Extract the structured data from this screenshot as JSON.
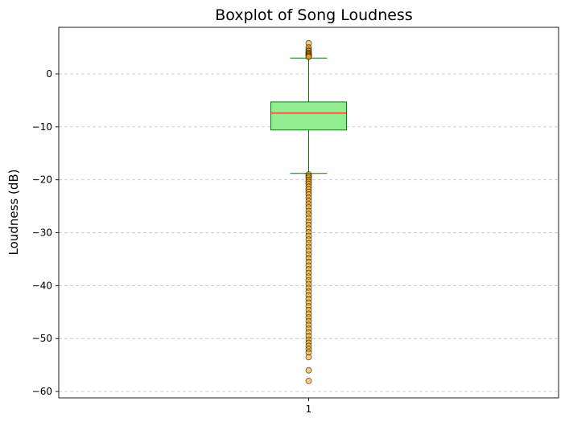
{
  "chart_data": {
    "type": "boxplot",
    "title": "Boxplot of Song Loudness",
    "xlabel": "",
    "ylabel": "Loudness (dB)",
    "categories": [
      "1"
    ],
    "ylim": [
      -61.2,
      8.8
    ],
    "yticks": [
      0,
      -10,
      -20,
      -30,
      -40,
      -50,
      -60
    ],
    "ytick_labels": [
      "0",
      "−10",
      "−20",
      "−30",
      "−40",
      "−50",
      "−60"
    ],
    "grid": "y-dashed",
    "box": {
      "median": -7.4,
      "q1": -10.6,
      "q3": -5.3,
      "whisker_low": -18.8,
      "whisker_high": 3.0
    },
    "outliers": [
      5.8,
      5.0,
      4.6,
      4.3,
      4.0,
      3.8,
      3.6,
      3.4,
      3.2,
      -19.0,
      -19.3,
      -19.6,
      -20.0,
      -20.4,
      -20.8,
      -21.3,
      -21.8,
      -22.3,
      -22.8,
      -23.4,
      -24.0,
      -24.6,
      -25.2,
      -25.9,
      -26.5,
      -27.2,
      -27.9,
      -28.5,
      -29.2,
      -29.9,
      -30.6,
      -31.3,
      -32.0,
      -32.7,
      -33.4,
      -34.1,
      -34.8,
      -35.5,
      -36.2,
      -36.9,
      -37.6,
      -38.3,
      -39.0,
      -39.7,
      -40.4,
      -41.1,
      -41.8,
      -42.5,
      -43.2,
      -43.9,
      -44.6,
      -45.3,
      -46.0,
      -46.7,
      -47.4,
      -48.1,
      -48.8,
      -49.5,
      -50.2,
      -50.8,
      -51.4,
      -52.0,
      -52.6,
      -53.5,
      -56.0,
      -58.0
    ],
    "colors": {
      "box_fill": "#90ee90",
      "box_edge": "#008000",
      "median": "#ff0000",
      "whisker": "#008000",
      "outlier_fill": "#ffa500",
      "outlier_edge": "#000000",
      "grid": "#c8c8c8"
    }
  }
}
